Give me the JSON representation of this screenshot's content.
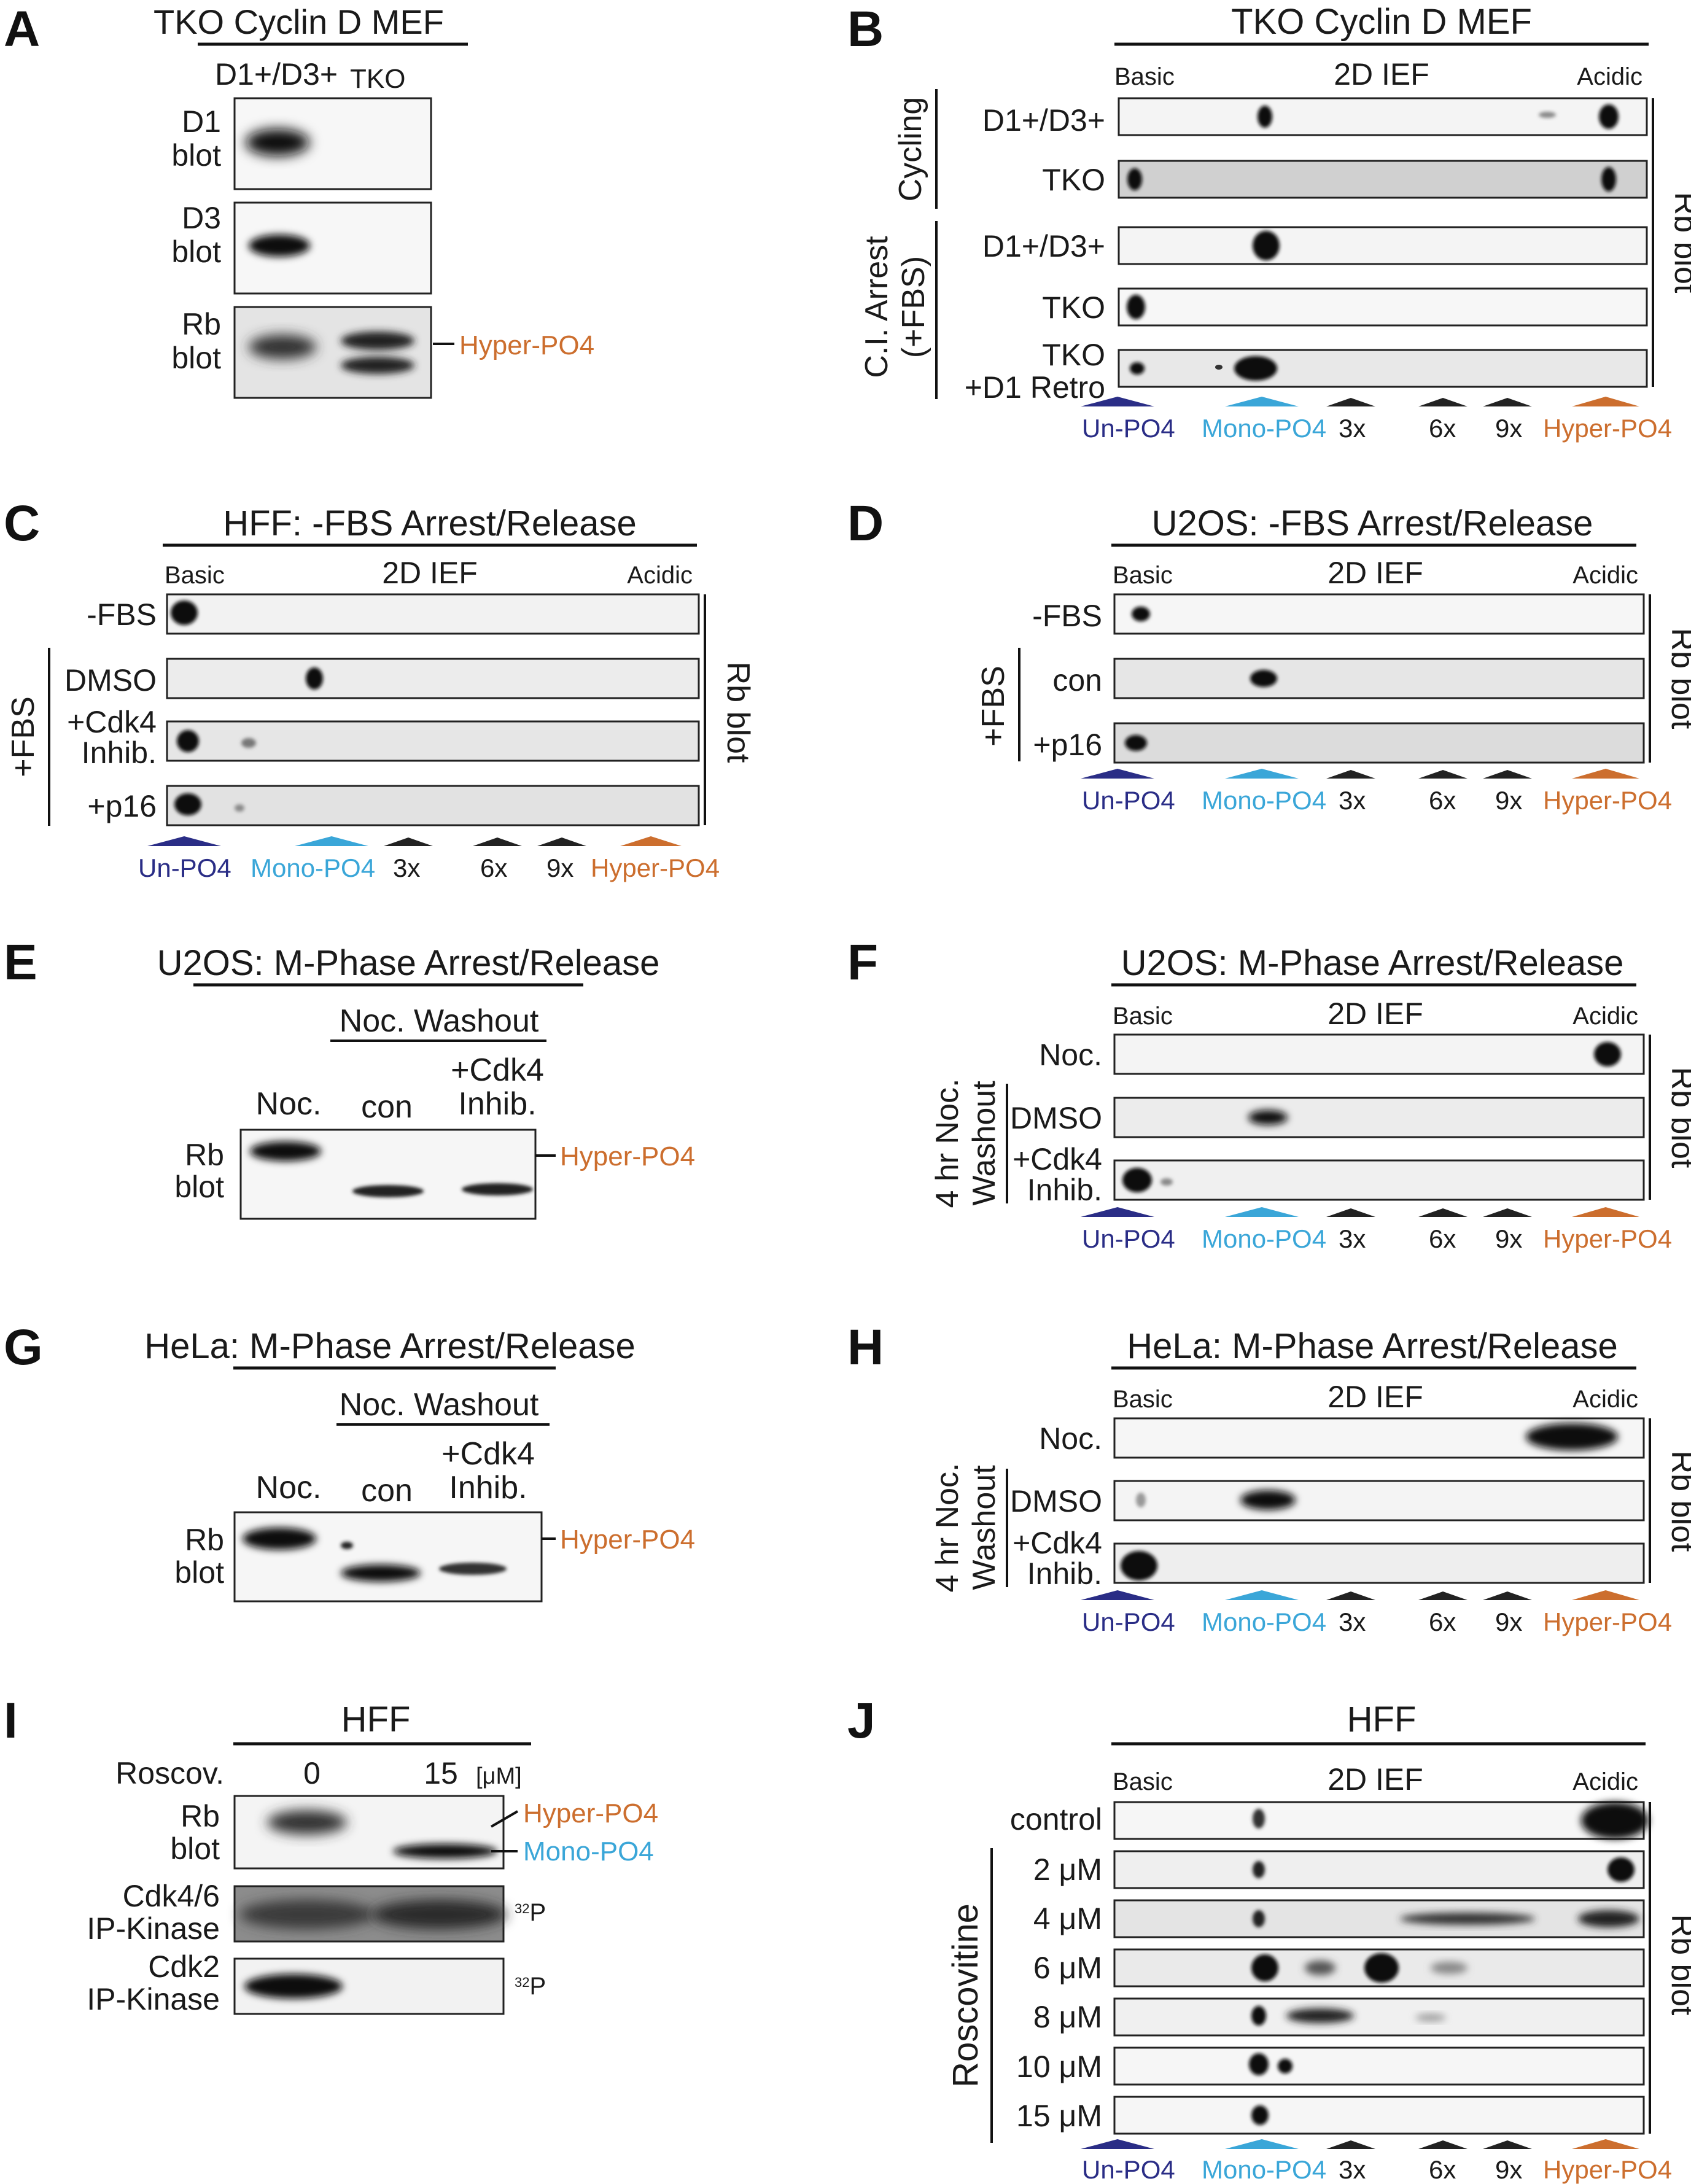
{
  "labels": {
    "hyper": "Hyper-PO4",
    "mono": "Mono-PO4",
    "un": "Un-PO4",
    "x3": "3x",
    "x6": "6x",
    "x9": "9x",
    "basic": "Basic",
    "acidic": "Acidic",
    "ief": "2D IEF",
    "rb_blot": "Rb blot",
    "rb": "Rb",
    "blot": "blot",
    "p32": "32P",
    "p32_sup": "32",
    "p32_base": "P"
  },
  "colors": {
    "un": "#2a2d86",
    "mono": "#3aa6d8",
    "hyper": "#cc6e2e",
    "xfold": "#222222"
  },
  "panelA": {
    "letter": "A",
    "title": "TKO Cyclin D MEF",
    "col1": "D1+/D3+",
    "col2": "TKO",
    "rows": [
      {
        "l1": "D1",
        "l2": "blot"
      },
      {
        "l1": "D3",
        "l2": "blot"
      },
      {
        "l1": "Rb",
        "l2": "blot"
      }
    ]
  },
  "panelB": {
    "letter": "B",
    "title": "TKO Cyclin D MEF",
    "group1": "Cycling",
    "group2a": "C.I. Arrest",
    "group2b": "(+FBS)",
    "rows": [
      "D1+/D3+",
      "TKO",
      "D1+/D3+",
      "TKO",
      "TKO",
      "+D1 Retro"
    ]
  },
  "panelC": {
    "letter": "C",
    "title": "HFF: -FBS Arrest/Release",
    "group": "+FBS",
    "rows": [
      "-FBS",
      "DMSO",
      "+Cdk4",
      "Inhib.",
      "+p16"
    ]
  },
  "panelD": {
    "letter": "D",
    "title": "U2OS: -FBS Arrest/Release",
    "group": "+FBS",
    "rows": [
      "-FBS",
      "con",
      "+p16"
    ]
  },
  "panelE": {
    "letter": "E",
    "title": "U2OS: M-Phase Arrest/Release",
    "sub": "Noc. Washout",
    "cols": [
      "Noc.",
      "con",
      "+Cdk4",
      "Inhib."
    ]
  },
  "panelF": {
    "letter": "F",
    "title": "U2OS: M-Phase Arrest/Release",
    "group1": "4 hr Noc.",
    "group2": "Washout",
    "rows": [
      "Noc.",
      "DMSO",
      "+Cdk4",
      "Inhib."
    ]
  },
  "panelG": {
    "letter": "G",
    "title": "HeLa: M-Phase Arrest/Release",
    "sub": "Noc. Washout",
    "cols": [
      "Noc.",
      "con",
      "+Cdk4",
      "Inhib."
    ]
  },
  "panelH": {
    "letter": "H",
    "title": "HeLa: M-Phase Arrest/Release",
    "group1": "4 hr Noc.",
    "group2": "Washout",
    "rows": [
      "Noc.",
      "DMSO",
      "+Cdk4",
      "Inhib."
    ]
  },
  "panelI": {
    "letter": "I",
    "title": "HFF",
    "roscov": "Roscov.",
    "c0": "0",
    "c15": "15",
    "unit": "[μM]",
    "rows": [
      {
        "l1": "Rb",
        "l2": "blot"
      },
      {
        "l1": "Cdk4/6",
        "l2": "IP-Kinase"
      },
      {
        "l1": "Cdk2",
        "l2": "IP-Kinase"
      }
    ]
  },
  "panelJ": {
    "letter": "J",
    "title": "HFF",
    "group": "Roscovitine",
    "rows": [
      "control",
      "2 μM",
      "4 μM",
      "6 μM",
      "8 μM",
      "10 μM",
      "15 μM"
    ]
  }
}
